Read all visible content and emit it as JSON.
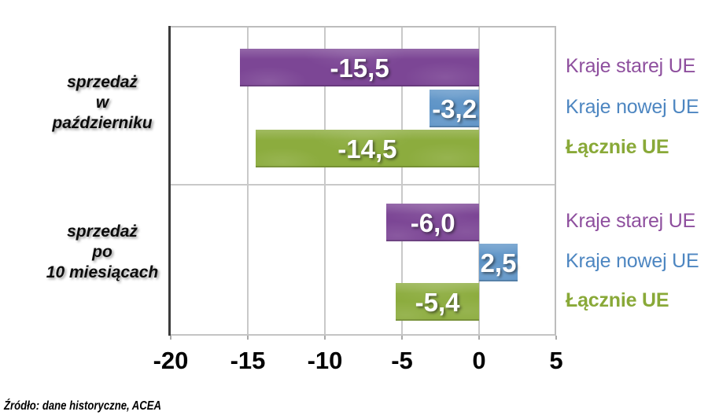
{
  "source_note": "Źródło: dane historyczne, ACEA",
  "chart_data": {
    "type": "bar",
    "orientation": "horizontal",
    "title": "",
    "xlabel": "",
    "ylabel": "",
    "xlim": [
      -20,
      5
    ],
    "grid": true,
    "legend_position": "right",
    "ticks": [
      {
        "label": "-20",
        "value": -20
      },
      {
        "label": "-15",
        "value": -15
      },
      {
        "label": "-10",
        "value": -10
      },
      {
        "label": "-5",
        "value": -5
      },
      {
        "label": "0",
        "value": 0
      },
      {
        "label": "5",
        "value": 5
      }
    ],
    "legend": [
      {
        "key": "old-eu",
        "label": "Kraje starej UE",
        "text_color": "#8e4f9e",
        "bold": false
      },
      {
        "key": "new-eu",
        "label": "Kraje nowej UE",
        "text_color": "#4d86c1",
        "bold": false
      },
      {
        "key": "total-eu",
        "label": "Łącznie UE",
        "text_color": "#89a938",
        "bold": true
      }
    ],
    "groups": [
      {
        "key": "october",
        "label_lines": [
          "sprzedaż",
          "w",
          "październiku"
        ],
        "bars": [
          {
            "key": "old-eu",
            "series": "Kraje starej UE",
            "value": -15.5,
            "display": "-15,5",
            "color": "#7c4695"
          },
          {
            "key": "new-eu",
            "series": "Kraje nowej UE",
            "value": -3.2,
            "display": "-3,2",
            "color": "#5b92c6"
          },
          {
            "key": "total-eu",
            "series": "Łącznie UE",
            "value": -14.5,
            "display": "-14,5",
            "color": "#8cac3e"
          }
        ]
      },
      {
        "key": "10-months",
        "label_lines": [
          "sprzedaż",
          "po",
          "10 miesiącach"
        ],
        "bars": [
          {
            "key": "old-eu",
            "series": "Kraje starej UE",
            "value": -6.0,
            "display": "-6,0",
            "color": "#7c4695"
          },
          {
            "key": "new-eu",
            "series": "Kraje nowej UE",
            "value": 2.5,
            "display": "2,5",
            "color": "#5b92c6"
          },
          {
            "key": "total-eu",
            "series": "Łącznie UE",
            "value": -5.4,
            "display": "-5,4",
            "color": "#8cac3e"
          }
        ]
      }
    ]
  }
}
